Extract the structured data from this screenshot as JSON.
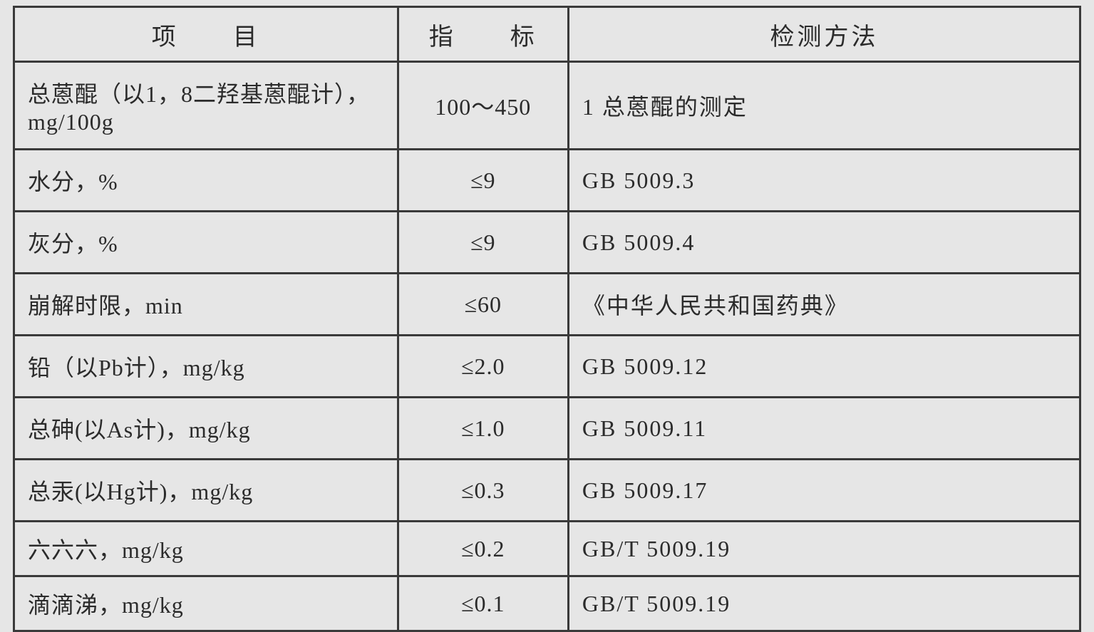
{
  "table": {
    "border_color": "#3a3a3a",
    "background_color": "#e6e6e6",
    "text_color": "#2b2b2b",
    "font_family": "SimSun",
    "header_fontsize": 34,
    "body_fontsize": 32,
    "border_width": 3,
    "column_widths_pct": [
      36,
      16,
      48
    ],
    "columns": [
      "项　　目",
      "指　　标",
      "检测方法"
    ],
    "rows": [
      {
        "item": "总蒽醌（以1，8二羟基蒽醌计），mg/100g",
        "index": "100～450",
        "method": "1  总蒽醌的测定",
        "tall": true
      },
      {
        "item": "水分，%",
        "index": "≤9",
        "method": "GB 5009.3"
      },
      {
        "item": "灰分，%",
        "index": "≤9",
        "method": "GB 5009.4"
      },
      {
        "item": "崩解时限，min",
        "index": "≤60",
        "method": "《中华人民共和国药典》"
      },
      {
        "item": "铅（以Pb计），mg/kg",
        "index": "≤2.0",
        "method": "GB 5009.12"
      },
      {
        "item": "总砷(以As计)，mg/kg",
        "index": "≤1.0",
        "method": "GB 5009.11"
      },
      {
        "item": "总汞(以Hg计)，mg/kg",
        "index": "≤0.3",
        "method": "GB 5009.17"
      },
      {
        "item": "六六六，mg/kg",
        "index": "≤0.2",
        "method": "GB/T 5009.19",
        "short": true
      },
      {
        "item": "滴滴涕，mg/kg",
        "index": "≤0.1",
        "method": "GB/T 5009.19",
        "short": true
      }
    ]
  }
}
